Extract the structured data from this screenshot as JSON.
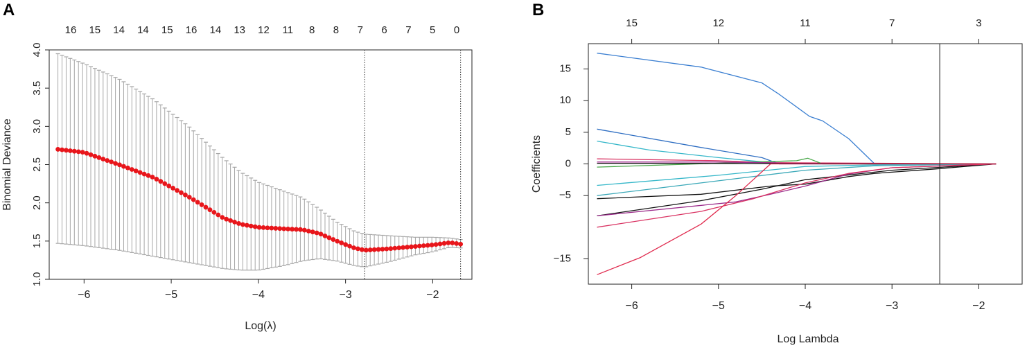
{
  "chart_data": [
    {
      "panel": "A",
      "type": "scatter",
      "subtype": "cv-deviance-with-error-bars",
      "title": "",
      "xlabel": "Log(λ)",
      "ylabel": "Binomial Deviance",
      "xlim": [
        -6.4,
        -1.55
      ],
      "ylim": [
        1.0,
        4.0
      ],
      "xticks": [
        -6,
        -5,
        -4,
        -3,
        -2
      ],
      "xtick_labels": [
        "−6",
        "−5",
        "−4",
        "−3",
        "−2"
      ],
      "yticks": [
        1.0,
        1.5,
        2.0,
        2.5,
        3.0,
        3.5,
        4.0
      ],
      "ytick_labels": [
        "1.0",
        "1.5",
        "2.0",
        "2.5",
        "3.0",
        "3.5",
        "4.0"
      ],
      "top_counts": [
        "16",
        "15",
        "14",
        "14",
        "15",
        "16",
        "14",
        "13",
        "12",
        "11",
        "8",
        "8",
        "7",
        "6",
        "7",
        "5",
        "0"
      ],
      "vlines": [
        -2.78,
        -1.68
      ],
      "curve_knots": {
        "x": [
          -6.3,
          -6.0,
          -5.6,
          -5.2,
          -4.8,
          -4.4,
          -4.2,
          -4.0,
          -3.7,
          -3.5,
          -3.3,
          -3.1,
          -2.9,
          -2.78,
          -2.5,
          -2.2,
          -2.0,
          -1.8,
          -1.68
        ],
        "mean": [
          2.7,
          2.66,
          2.5,
          2.33,
          2.08,
          1.8,
          1.72,
          1.68,
          1.66,
          1.65,
          1.6,
          1.5,
          1.41,
          1.38,
          1.4,
          1.43,
          1.45,
          1.48,
          1.46
        ],
        "upper": [
          3.95,
          3.82,
          3.62,
          3.35,
          3.0,
          2.58,
          2.4,
          2.27,
          2.15,
          2.07,
          1.92,
          1.75,
          1.63,
          1.59,
          1.57,
          1.55,
          1.55,
          1.54,
          1.52
        ],
        "lower": [
          1.47,
          1.44,
          1.38,
          1.3,
          1.22,
          1.14,
          1.12,
          1.12,
          1.18,
          1.24,
          1.27,
          1.24,
          1.18,
          1.16,
          1.23,
          1.32,
          1.36,
          1.42,
          1.41
        ]
      },
      "n_points": 99,
      "colors": {
        "points": "#e8161b",
        "bars": "#a6a6a6",
        "vline": "#333333"
      }
    },
    {
      "panel": "B",
      "type": "line",
      "subtype": "lasso-coefficient-paths",
      "title": "",
      "xlabel": "Log Lambda",
      "ylabel": "Coefficients",
      "xlim": [
        -6.5,
        -1.5
      ],
      "ylim": [
        -19,
        19
      ],
      "xticks": [
        -6,
        -5,
        -4,
        -3,
        -2
      ],
      "xtick_labels": [
        "−6",
        "−5",
        "−4",
        "−3",
        "−2"
      ],
      "yticks": [
        -15,
        -5,
        0,
        5,
        10,
        15
      ],
      "ytick_labels": [
        "−15",
        "−5",
        "0",
        "5",
        "10",
        "15"
      ],
      "top_axis": {
        "positions": [
          -6.0,
          -5.0,
          -4.0,
          -3.0,
          -2.0
        ],
        "labels": [
          "15",
          "12",
          "11",
          "7",
          "3"
        ]
      },
      "vline": -2.45,
      "series": [
        {
          "name": "path-1",
          "color": "#3b7fd1",
          "x": [
            -6.4,
            -5.2,
            -4.5,
            -4.3,
            -4.1,
            -3.95,
            -3.8,
            -3.5,
            -3.2,
            -1.8
          ],
          "y": [
            17.5,
            15.3,
            12.8,
            11.0,
            9.0,
            7.5,
            6.8,
            4.0,
            0.0,
            0.0
          ]
        },
        {
          "name": "path-2",
          "color": "#2e6ec2",
          "x": [
            -6.4,
            -5.2,
            -4.5,
            -4.3,
            -1.8
          ],
          "y": [
            5.5,
            2.6,
            1.0,
            0.0,
            0.0
          ]
        },
        {
          "name": "path-3",
          "color": "#35b7c9",
          "x": [
            -6.4,
            -5.8,
            -5.0,
            -4.4,
            -4.0,
            -1.8
          ],
          "y": [
            3.6,
            2.2,
            1.0,
            0.2,
            0.0,
            0.0
          ]
        },
        {
          "name": "path-4",
          "color": "#d93262",
          "x": [
            -6.4,
            -5.0,
            -4.4,
            -1.8
          ],
          "y": [
            0.8,
            0.5,
            0.2,
            0.0
          ]
        },
        {
          "name": "path-5",
          "color": "#4aa84a",
          "x": [
            -6.4,
            -4.1,
            -3.97,
            -3.8,
            -1.8
          ],
          "y": [
            -0.5,
            0.5,
            0.9,
            0.0,
            0.0
          ]
        },
        {
          "name": "path-6",
          "color": "#9b2a8a",
          "x": [
            -6.4,
            -5.0,
            -4.5,
            -4.2,
            -1.8
          ],
          "y": [
            0.3,
            0.3,
            0.2,
            0.1,
            0.0
          ]
        },
        {
          "name": "path-7",
          "color": "#111111",
          "x": [
            -6.4,
            -4.0,
            -1.8
          ],
          "y": [
            0.1,
            0.05,
            0.0
          ]
        },
        {
          "name": "path-8",
          "color": "#35b7c9",
          "x": [
            -6.4,
            -5.0,
            -4.0,
            -3.0,
            -1.8
          ],
          "y": [
            -3.4,
            -1.8,
            -0.4,
            -0.1,
            0.0
          ]
        },
        {
          "name": "path-9",
          "color": "#3aa8b8",
          "x": [
            -6.4,
            -5.2,
            -4.0,
            -3.2,
            -1.8
          ],
          "y": [
            -5.0,
            -3.0,
            -1.0,
            -0.3,
            0.0
          ]
        },
        {
          "name": "path-10",
          "color": "#111111",
          "x": [
            -6.4,
            -5.2,
            -4.4,
            -4.0,
            -3.5,
            -3.2,
            -2.5,
            -1.8
          ],
          "y": [
            -5.5,
            -4.8,
            -3.5,
            -3.2,
            -2.0,
            -1.5,
            -0.8,
            0.0
          ]
        },
        {
          "name": "path-11",
          "color": "#111111",
          "x": [
            -6.4,
            -5.2,
            -4.5,
            -4.0,
            -3.0,
            -1.8
          ],
          "y": [
            -8.2,
            -5.8,
            -4.0,
            -2.5,
            -1.0,
            0.0
          ]
        },
        {
          "name": "path-12",
          "color": "#9b2a8a",
          "x": [
            -6.4,
            -4.8,
            -4.4,
            -4.0,
            -3.5,
            -3.0,
            -1.8
          ],
          "y": [
            -8.2,
            -6.0,
            -4.8,
            -3.5,
            -1.6,
            -0.6,
            0.0
          ]
        },
        {
          "name": "path-13",
          "color": "#d93262",
          "x": [
            -6.4,
            -5.2,
            -4.6,
            -4.0,
            -3.5,
            -3.0,
            -1.8
          ],
          "y": [
            -10.0,
            -7.5,
            -5.5,
            -3.0,
            -1.5,
            -0.6,
            0.0
          ]
        },
        {
          "name": "path-14",
          "color": "#e0294d",
          "x": [
            -6.4,
            -5.9,
            -5.2,
            -4.8,
            -4.6,
            -4.4,
            -1.8
          ],
          "y": [
            -17.5,
            -14.8,
            -9.5,
            -5.0,
            -2.5,
            0.0,
            0.0
          ]
        }
      ]
    }
  ],
  "panels": {
    "a_label": "A",
    "b_label": "B"
  }
}
